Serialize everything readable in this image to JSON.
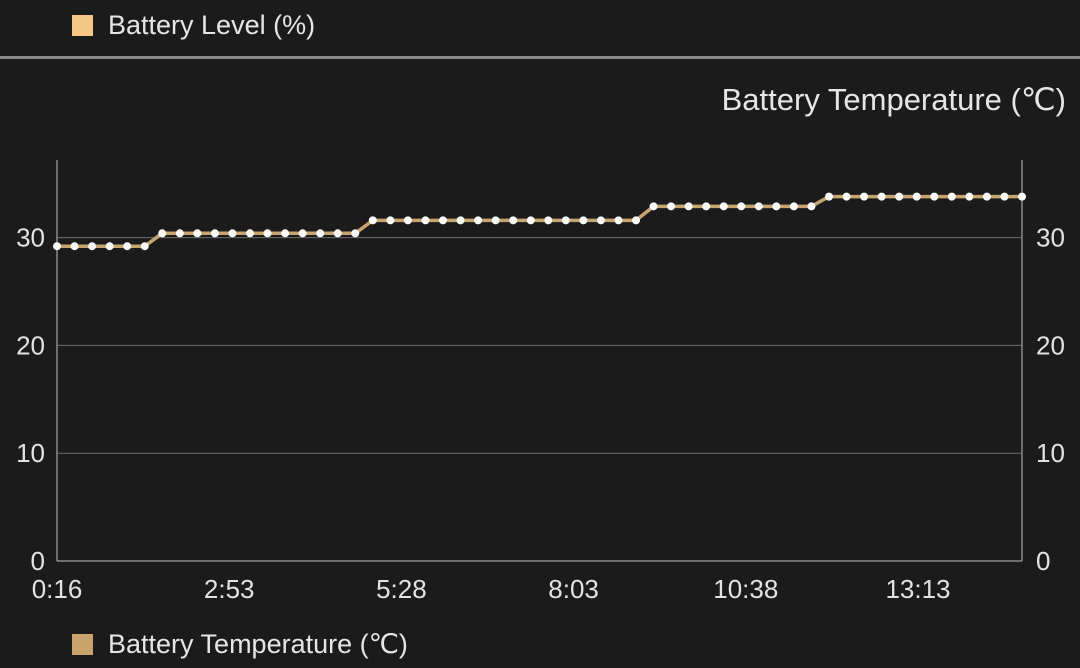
{
  "colors": {
    "background": "#1c1b1b",
    "battery_level": "#f6c784",
    "battery_temperature": "#c9a36c",
    "point_fill": "#ffffff",
    "grid": "#6e6e6e",
    "axis": "#8a8a8a"
  },
  "top_legend": {
    "label": "Battery Level (%)"
  },
  "bottom_legend": {
    "label": "Battery Temperature (℃)"
  },
  "chart_data": {
    "type": "line",
    "title": "Battery Temperature (℃)",
    "xlabel": "",
    "ylabel": "",
    "x_tick_labels": [
      "0:16",
      "2:53",
      "5:28",
      "8:03",
      "10:38",
      "13:13"
    ],
    "y_tick_labels": [
      "0",
      "10",
      "20",
      "30"
    ],
    "y_ticks": [
      0,
      10,
      20,
      30
    ],
    "ylim": [
      0,
      37
    ],
    "grid": true,
    "legend_position": "bottom-left",
    "series": [
      {
        "name": "Battery Temperature (℃)",
        "values": [
          29.2,
          29.2,
          29.2,
          29.2,
          29.2,
          29.2,
          30.4,
          30.4,
          30.4,
          30.4,
          30.4,
          30.4,
          30.4,
          30.4,
          30.4,
          30.4,
          30.4,
          30.4,
          31.6,
          31.6,
          31.6,
          31.6,
          31.6,
          31.6,
          31.6,
          31.6,
          31.6,
          31.6,
          31.6,
          31.6,
          31.6,
          31.6,
          31.6,
          31.6,
          32.9,
          32.9,
          32.9,
          32.9,
          32.9,
          32.9,
          32.9,
          32.9,
          32.9,
          32.9,
          33.8,
          33.8,
          33.8,
          33.8,
          33.8,
          33.8,
          33.8,
          33.8,
          33.8,
          33.8,
          33.8,
          33.8
        ]
      }
    ]
  }
}
